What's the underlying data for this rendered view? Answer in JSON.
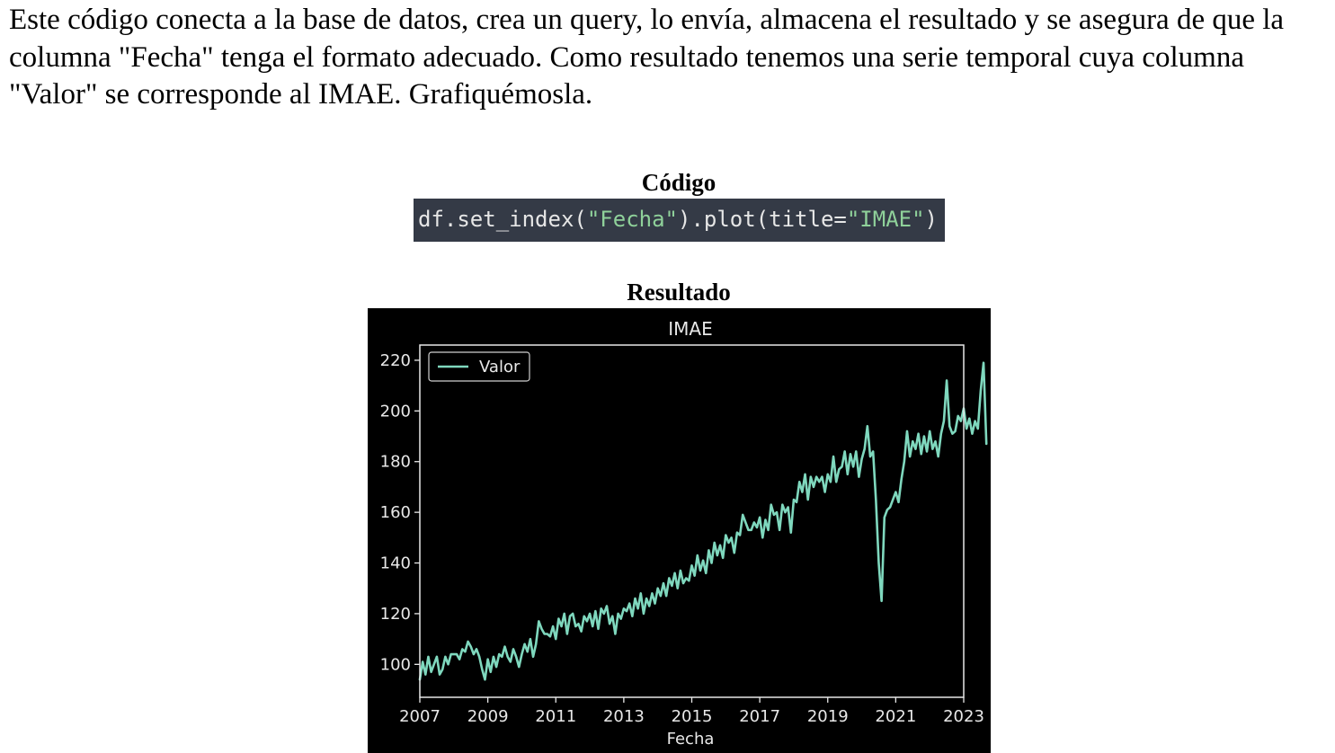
{
  "intro": {
    "paragraph": "Este código conecta a la base de datos, crea un query, lo envía, almacena el resultado y se asegura de que la columna \"Fecha\" tenga el formato adecuado. Como resultado tenemos una serie temporal cuya columna \"Valor\" se corresponde al IMAE. Grafiquémosla."
  },
  "code_section": {
    "label": "Código",
    "code": {
      "prefix": "df.set_index(",
      "arg1": "\"Fecha\"",
      "middle": ").plot(title=",
      "arg2": "\"IMAE\"",
      "suffix": ")"
    },
    "string_color": "#8fd19a",
    "background_color": "#343a46"
  },
  "result_section": {
    "label": "Resultado"
  },
  "chart_data": {
    "type": "line",
    "title": "IMAE",
    "xlabel": "Fecha",
    "ylabel": "",
    "xlim": [
      2007,
      2023
    ],
    "ylim": [
      87,
      226
    ],
    "x_ticks": [
      "2007",
      "2009",
      "2011",
      "2013",
      "2015",
      "2017",
      "2019",
      "2021",
      "2023"
    ],
    "y_ticks": [
      "100",
      "120",
      "140",
      "160",
      "180",
      "200",
      "220"
    ],
    "legend": {
      "position": "top-left"
    },
    "grid": false,
    "line_color": "#7fd8be",
    "series": [
      {
        "name": "Valor",
        "x_start": "2007-01",
        "frequency": "monthly",
        "values": [
          94,
          101,
          96,
          103,
          97,
          100,
          103,
          96,
          98,
          103,
          100,
          104,
          104,
          104,
          102,
          106,
          105,
          109,
          107,
          104,
          106,
          103,
          98,
          94,
          102,
          97,
          103,
          99,
          104,
          103,
          107,
          103,
          101,
          106,
          103,
          99,
          104,
          108,
          105,
          110,
          103,
          108,
          117,
          114,
          112,
          112,
          111,
          115,
          110,
          118,
          115,
          120,
          112,
          119,
          120,
          115,
          116,
          113,
          119,
          117,
          120,
          115,
          121,
          114,
          122,
          120,
          123,
          116,
          119,
          112,
          120,
          118,
          122,
          121,
          124,
          119,
          126,
          122,
          128,
          120,
          126,
          123,
          128,
          124,
          130,
          127,
          132,
          127,
          134,
          131,
          136,
          130,
          137,
          132,
          134,
          133,
          139,
          135,
          143,
          137,
          141,
          136,
          145,
          140,
          148,
          143,
          147,
          142,
          151,
          148,
          150,
          144,
          152,
          151,
          159,
          156,
          153,
          153,
          156,
          154,
          158,
          150,
          157,
          153,
          163,
          159,
          160,
          153,
          163,
          160,
          162,
          152,
          165,
          164,
          172,
          168,
          175,
          165,
          174,
          170,
          174,
          172,
          174,
          168,
          175,
          172,
          182,
          172,
          177,
          178,
          184,
          175,
          183,
          178,
          184,
          174,
          181,
          185,
          194,
          182,
          184,
          165,
          140,
          125,
          158,
          161,
          162,
          165,
          168,
          164,
          173,
          180,
          192,
          182,
          188,
          185,
          191,
          183,
          190,
          184,
          192,
          185,
          188,
          182,
          191,
          196,
          212,
          194,
          191,
          192,
          198,
          196,
          201,
          193,
          197,
          191,
          196,
          193,
          208,
          219,
          187
        ]
      }
    ]
  }
}
